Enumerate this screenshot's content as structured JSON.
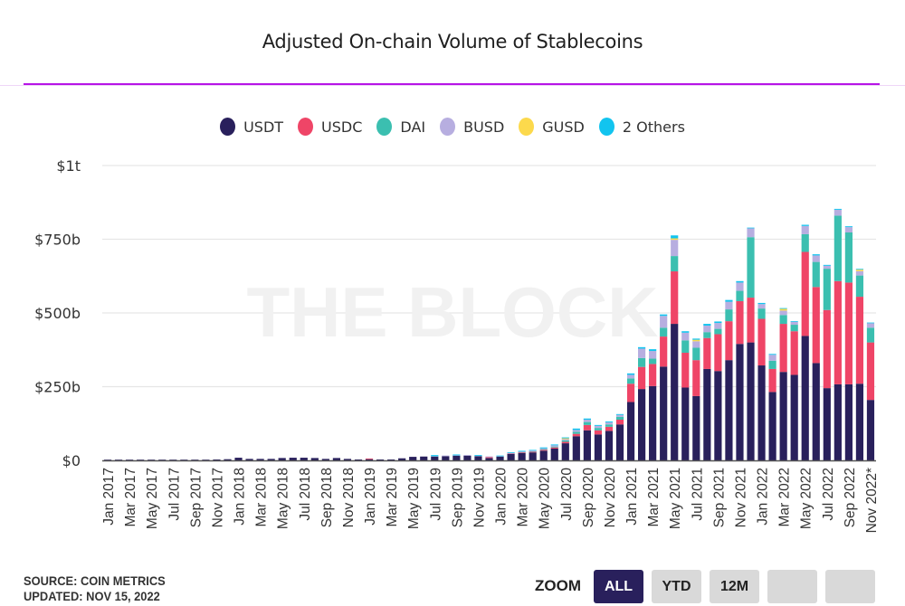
{
  "header": {
    "title": "Adjusted On-chain Volume of Stablecoins"
  },
  "watermark": "THE BLOCK",
  "legend": [
    {
      "label": "USDT",
      "color": "#29205c"
    },
    {
      "label": "USDC",
      "color": "#ef4567"
    },
    {
      "label": "DAI",
      "color": "#3bbfb0"
    },
    {
      "label": "BUSD",
      "color": "#b7aee0"
    },
    {
      "label": "GUSD",
      "color": "#fcd94c"
    },
    {
      "label": "2 Others",
      "color": "#12c4ef"
    }
  ],
  "footer": {
    "source": "SOURCE: COIN METRICS",
    "updated": "UPDATED: NOV 15, 2022"
  },
  "zoom": {
    "label": "ZOOM",
    "buttons": [
      {
        "label": "ALL",
        "active": true
      },
      {
        "label": "YTD",
        "active": false
      },
      {
        "label": "12M",
        "active": false
      },
      {
        "label": "",
        "active": false
      },
      {
        "label": "",
        "active": false
      }
    ]
  },
  "chart_data": {
    "type": "bar",
    "stacked": true,
    "title": "Adjusted On-chain Volume of Stablecoins",
    "xlabel": "",
    "ylabel": "",
    "ylim": [
      0,
      1000
    ],
    "units": "USD billions",
    "yticks": [
      {
        "value": 0,
        "label": "$0"
      },
      {
        "value": 250,
        "label": "$250b"
      },
      {
        "value": 500,
        "label": "$500b"
      },
      {
        "value": 750,
        "label": "$750b"
      },
      {
        "value": 1000,
        "label": "$1t"
      }
    ],
    "grid": true,
    "legend_position": "top-center",
    "categories": [
      "Jan 2017",
      "Feb 2017",
      "Mar 2017",
      "Apr 2017",
      "May 2017",
      "Jun 2017",
      "Jul 2017",
      "Aug 2017",
      "Sep 2017",
      "Oct 2017",
      "Nov 2017",
      "Dec 2017",
      "Jan 2018",
      "Feb 2018",
      "Mar 2018",
      "Apr 2018",
      "May 2018",
      "Jun 2018",
      "Jul 2018",
      "Aug 2018",
      "Sep 2018",
      "Oct 2018",
      "Nov 2018",
      "Dec 2018",
      "Jan 2019",
      "Feb 2019",
      "Mar 2019",
      "Apr 2019",
      "May 2019",
      "Jun 2019",
      "Jul 2019",
      "Aug 2019",
      "Sep 2019",
      "Oct 2019",
      "Nov 2019",
      "Dec 2019",
      "Jan 2020",
      "Feb 2020",
      "Mar 2020",
      "Apr 2020",
      "May 2020",
      "Jun 2020",
      "Jul 2020",
      "Aug 2020",
      "Sep 2020",
      "Oct 2020",
      "Nov 2020",
      "Dec 2020",
      "Jan 2021",
      "Feb 2021",
      "Mar 2021",
      "Apr 2021",
      "May 2021",
      "Jun 2021",
      "Jul 2021",
      "Aug 2021",
      "Sep 2021",
      "Oct 2021",
      "Nov 2021",
      "Dec 2021",
      "Jan 2022",
      "Feb 2022",
      "Mar 2022",
      "Apr 2022",
      "May 2022",
      "Jun 2022",
      "Jul 2022",
      "Aug 2022",
      "Sep 2022",
      "Oct 2022",
      "Nov 2022*"
    ],
    "tick_labels": [
      "Jan 2017",
      "Mar 2017",
      "May 2017",
      "Jul 2017",
      "Sep 2017",
      "Nov 2017",
      "Jan 2018",
      "Mar 2018",
      "May 2018",
      "Jul 2018",
      "Sep 2018",
      "Nov 2018",
      "Jan 2019",
      "Mar 2019",
      "May 2019",
      "Jul 2019",
      "Sep 2019",
      "Nov 2019",
      "Jan 2020",
      "Mar 2020",
      "May 2020",
      "Jul 2020",
      "Sep 2020",
      "Nov 2020",
      "Jan 2021",
      "Mar 2021",
      "May 2021",
      "Jul 2021",
      "Sep 2021",
      "Nov 2021",
      "Jan 2022",
      "Mar 2022",
      "May 2022",
      "Jul 2022",
      "Sep 2022",
      "Nov 2022*"
    ],
    "series": [
      {
        "name": "USDT",
        "color": "#29205c",
        "values": [
          0.3,
          0.3,
          0.4,
          0.5,
          0.6,
          0.7,
          0.8,
          0.9,
          1,
          2,
          3,
          4,
          9,
          5,
          5,
          5,
          8,
          9,
          9,
          8,
          5,
          8,
          5,
          3,
          4,
          3,
          3,
          7,
          12,
          13,
          13,
          14,
          16,
          16,
          14,
          8,
          13,
          22,
          25,
          27,
          33,
          40,
          58,
          82,
          102,
          88,
          100,
          122,
          198,
          242,
          252,
          318,
          463,
          247,
          218,
          310,
          303,
          340,
          395,
          400,
          322,
          232,
          300,
          290,
          422,
          330,
          245,
          258,
          258,
          260,
          205
        ]
      },
      {
        "name": "USDC",
        "color": "#ef4567",
        "values": [
          0,
          0,
          0,
          0,
          0,
          0,
          0,
          0,
          0,
          0,
          0,
          0,
          0,
          0,
          0,
          0,
          0,
          0,
          0,
          0,
          0,
          0,
          0,
          0,
          2,
          0,
          0,
          0,
          0,
          0,
          0,
          0,
          0,
          0,
          0,
          3,
          0,
          1,
          2,
          2,
          3,
          4,
          5,
          8,
          18,
          14,
          14,
          16,
          62,
          75,
          75,
          102,
          178,
          118,
          122,
          105,
          125,
          132,
          145,
          152,
          158,
          78,
          163,
          148,
          285,
          258,
          265,
          350,
          345,
          295,
          195
        ]
      },
      {
        "name": "DAI",
        "color": "#3bbfb0",
        "values": [
          0,
          0,
          0,
          0,
          0,
          0,
          0,
          0,
          0,
          0,
          0,
          0,
          0,
          0,
          0,
          0,
          0,
          0,
          0,
          0,
          0,
          0,
          0,
          0,
          0,
          0,
          0,
          0,
          0,
          0,
          0,
          0,
          0,
          0,
          0,
          0,
          0,
          0,
          1,
          1,
          2,
          3,
          5,
          7,
          10,
          8,
          8,
          10,
          18,
          30,
          18,
          30,
          52,
          42,
          42,
          20,
          18,
          40,
          35,
          205,
          35,
          28,
          30,
          22,
          60,
          85,
          140,
          222,
          170,
          72,
          50
        ]
      },
      {
        "name": "BUSD",
        "color": "#b7aee0",
        "values": [
          0,
          0,
          0,
          0,
          0,
          0,
          0,
          0,
          0,
          0,
          0,
          0,
          0,
          0,
          0,
          0,
          0,
          0,
          0,
          0,
          0,
          0,
          0,
          0,
          0,
          0,
          0,
          0,
          0,
          0,
          1,
          1,
          1,
          1,
          1,
          1,
          1,
          2,
          2,
          3,
          3,
          4,
          4,
          6,
          8,
          7,
          7,
          6,
          12,
          32,
          26,
          40,
          55,
          26,
          22,
          22,
          20,
          26,
          28,
          30,
          15,
          20,
          15,
          10,
          28,
          22,
          10,
          20,
          18,
          15,
          15
        ]
      },
      {
        "name": "GUSD",
        "color": "#fcd94c",
        "values": [
          0,
          0,
          0,
          0,
          0,
          0,
          0,
          0,
          0,
          0,
          0,
          0,
          0,
          0,
          0,
          0,
          0,
          0,
          0,
          0,
          0,
          0,
          0,
          0,
          0,
          0,
          0,
          0,
          0,
          0,
          0,
          0,
          0,
          0,
          0,
          0,
          0,
          0,
          0,
          0,
          0,
          0,
          3,
          0,
          0,
          0,
          0,
          0,
          0,
          0,
          0,
          0,
          5,
          0,
          5,
          0,
          0,
          0,
          0,
          0,
          0,
          0,
          6,
          0,
          0,
          0,
          0,
          0,
          0,
          5,
          0
        ]
      },
      {
        "name": "2 Others",
        "color": "#12c4ef",
        "values": [
          0,
          0,
          0,
          0,
          0,
          0,
          0,
          0,
          0,
          0,
          0,
          0,
          0,
          0,
          0,
          0,
          0,
          0,
          0,
          0,
          0,
          0,
          0,
          0,
          0,
          0,
          0,
          0,
          0,
          0,
          4,
          0,
          3,
          0,
          3,
          0,
          1,
          2,
          2,
          2,
          3,
          3,
          3,
          5,
          4,
          3,
          3,
          3,
          5,
          5,
          6,
          5,
          10,
          5,
          4,
          6,
          5,
          6,
          5,
          2,
          4,
          3,
          2,
          2,
          4,
          4,
          3,
          3,
          3,
          2,
          2
        ]
      }
    ]
  }
}
